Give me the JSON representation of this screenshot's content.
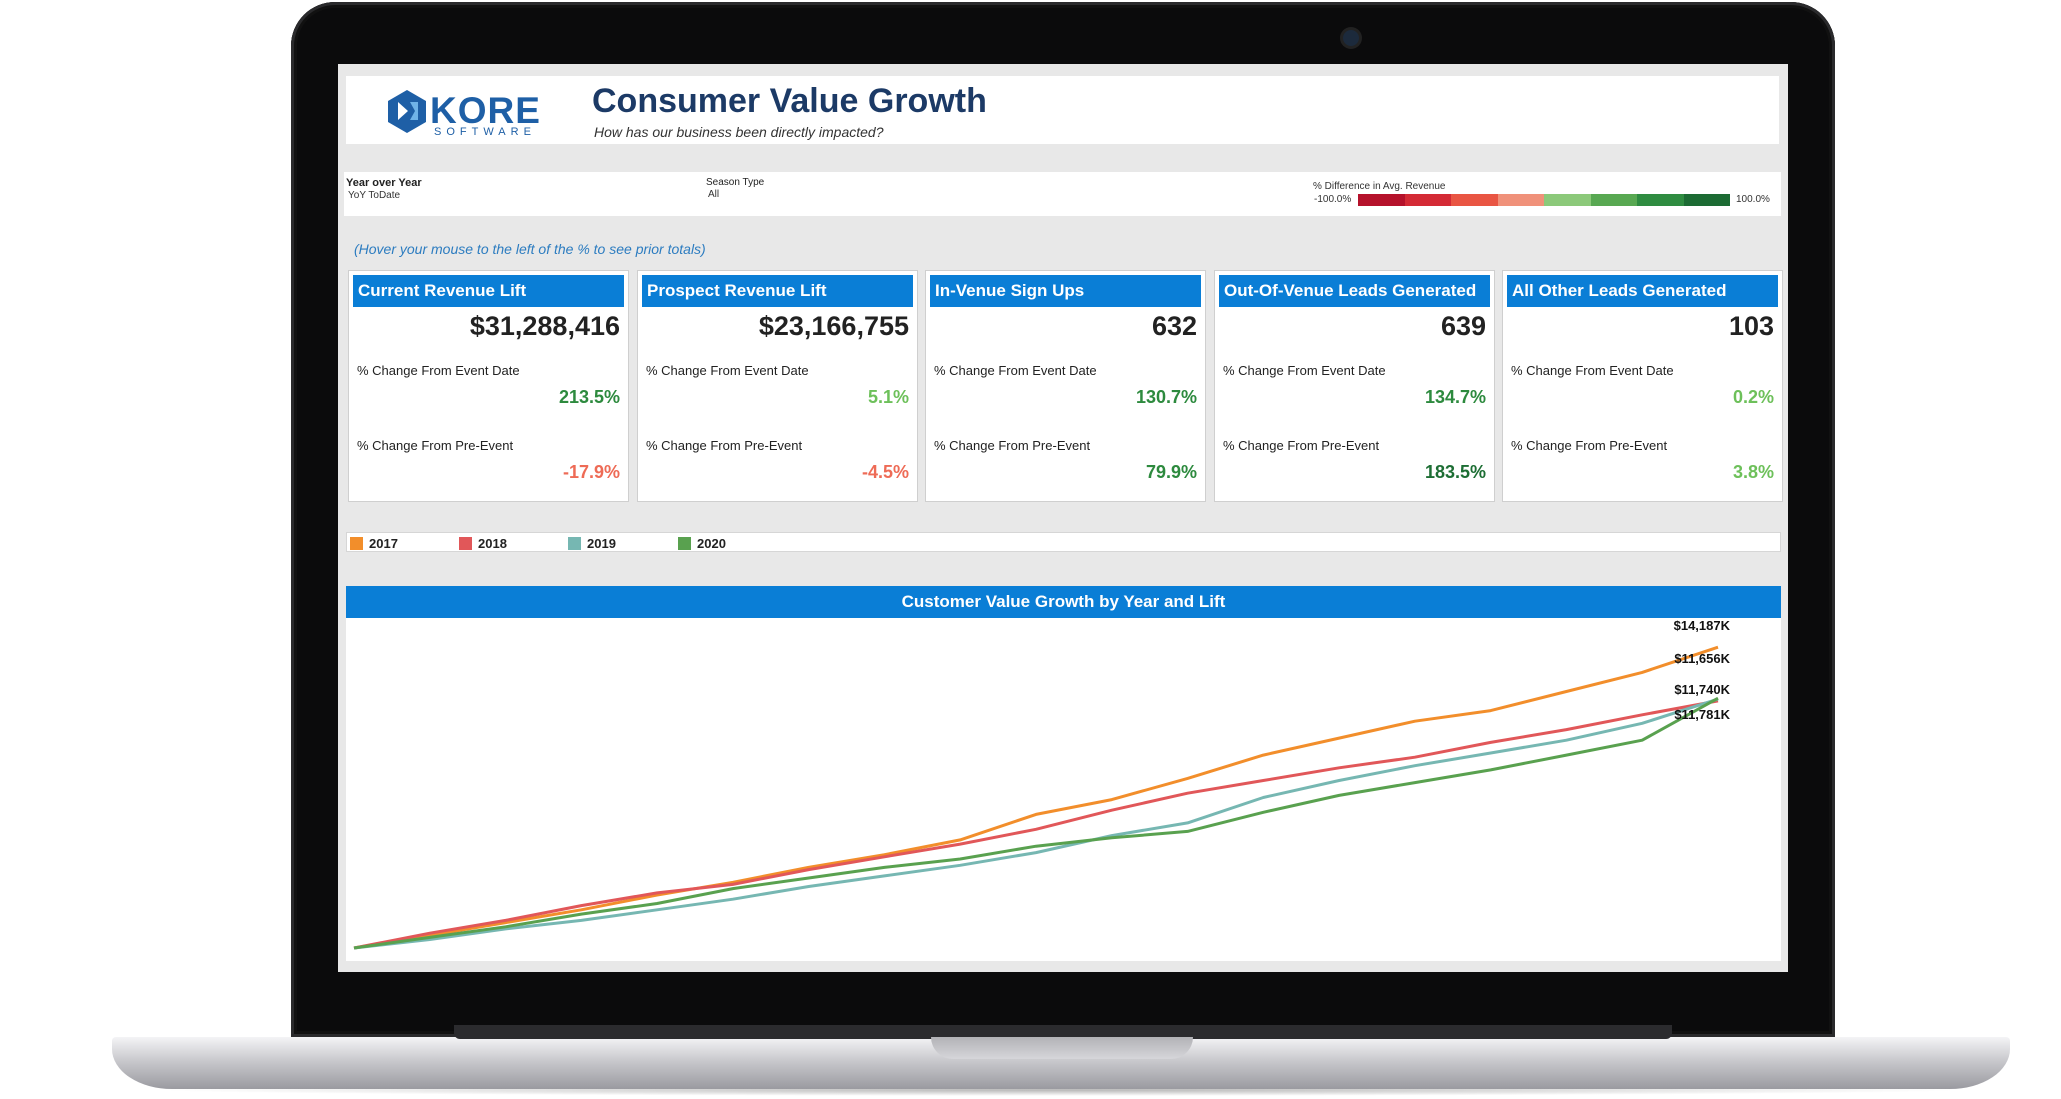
{
  "header": {
    "logo_word": "KORE",
    "logo_sub": "SOFTWARE",
    "title": "Consumer Value Growth",
    "subtitle": "How has our business been directly impacted?"
  },
  "filters": {
    "year": {
      "label": "Year over Year",
      "value": "YoY ToDate"
    },
    "season": {
      "label": "Season Type",
      "value": "All"
    },
    "diff": {
      "label": "% Difference in Avg. Revenue",
      "min": "-100.0%",
      "max": "100.0%",
      "colors": [
        "#b5122b",
        "#d42a35",
        "#e95543",
        "#f0917a",
        "#8cc97a",
        "#58a852",
        "#2f8c41",
        "#1c6b33"
      ]
    }
  },
  "hint": "(Hover your mouse to the left of the % to see prior totals)",
  "kpis": [
    {
      "title": "Current Revenue Lift",
      "value": "$31,288,416",
      "label1": "% Change From Event Date",
      "pct1": "213.5%",
      "color1": "#2d8a3e",
      "label2": "% Change From Pre-Event",
      "pct2": "-17.9%",
      "color2": "#ee6b56"
    },
    {
      "title": "Prospect Revenue Lift",
      "value": "$23,166,755",
      "label1": "% Change From Event Date",
      "pct1": "5.1%",
      "color1": "#6dc05a",
      "label2": "% Change From Pre-Event",
      "pct2": "-4.5%",
      "color2": "#ee6b56"
    },
    {
      "title": "In-Venue Sign Ups",
      "value": "632",
      "label1": "% Change From Event Date",
      "pct1": "130.7%",
      "color1": "#2d8a3e",
      "label2": "% Change From Pre-Event",
      "pct2": "79.9%",
      "color2": "#2d8a3e"
    },
    {
      "title": "Out-Of-Venue Leads Generated",
      "value": "639",
      "label1": "% Change From Event Date",
      "pct1": "134.7%",
      "color1": "#2d8a3e",
      "label2": "% Change From Pre-Event",
      "pct2": "183.5%",
      "color2": "#1d6e34"
    },
    {
      "title": "All Other Leads Generated",
      "value": "103",
      "label1": "% Change From Event Date",
      "pct1": "0.2%",
      "color1": "#6dc05a",
      "label2": "% Change From Pre-Event",
      "pct2": "3.8%",
      "color2": "#6dc05a"
    }
  ],
  "chart_data": {
    "type": "line",
    "title": "Customer Value Growth by Year and Lift",
    "xlabel": "",
    "ylabel": "",
    "ylim": [
      0,
      15000
    ],
    "grid": false,
    "legend": "top-left",
    "series": [
      {
        "name": "2017",
        "color": "#f28e2b",
        "values": [
          0,
          600,
          1200,
          1800,
          2500,
          3100,
          3800,
          4400,
          5100,
          6300,
          7000,
          8000,
          9100,
          9900,
          10700,
          11200,
          12100,
          13000,
          14187
        ],
        "end_label": "$14,187K"
      },
      {
        "name": "2018",
        "color": "#e15759",
        "values": [
          0,
          700,
          1300,
          2000,
          2600,
          3000,
          3700,
          4300,
          4900,
          5600,
          6500,
          7300,
          7900,
          8500,
          9000,
          9700,
          10300,
          11000,
          11656
        ],
        "end_label": "$11,656K"
      },
      {
        "name": "2019",
        "color": "#76b7b2",
        "values": [
          0,
          400,
          900,
          1300,
          1800,
          2300,
          2900,
          3400,
          3900,
          4500,
          5300,
          5900,
          7100,
          7900,
          8600,
          9200,
          9800,
          10600,
          11740
        ],
        "end_label": "$11,740K"
      },
      {
        "name": "2020",
        "color": "#59a14f",
        "values": [
          0,
          500,
          1000,
          1600,
          2100,
          2800,
          3300,
          3800,
          4200,
          4800,
          5200,
          5500,
          6400,
          7200,
          7800,
          8400,
          9100,
          9800,
          11781
        ],
        "end_label": "$11,781K"
      }
    ]
  }
}
